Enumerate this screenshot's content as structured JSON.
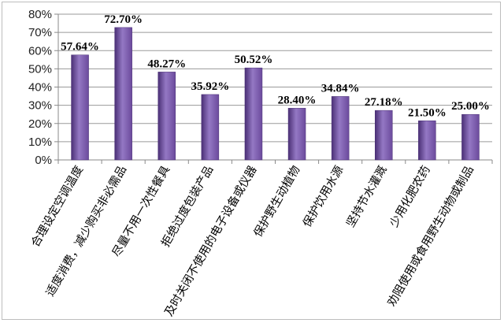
{
  "chart_data": {
    "type": "bar",
    "categories": [
      "合理设定空调温度",
      "适度消费，减少购买非必需品",
      "尽量不用一次性餐具",
      "拒绝过度包装产品",
      "及时关闭不使用的电子设备或仪器",
      "保护野生动植物",
      "保护饮用水源",
      "坚持节水灌溉",
      "少用化肥农药",
      "劝阻使用或食用野生动物或制品"
    ],
    "values": [
      57.64,
      72.7,
      48.27,
      35.92,
      50.52,
      28.4,
      34.84,
      27.18,
      21.5,
      25.0
    ],
    "data_labels": [
      "57.64%",
      "72.70%",
      "48.27%",
      "35.92%",
      "50.52%",
      "28.40%",
      "34.84%",
      "27.18%",
      "21.50%",
      "25.00%"
    ],
    "y_ticks": [
      0,
      10,
      20,
      30,
      40,
      50,
      60,
      70,
      80
    ],
    "y_tick_labels": [
      "0%",
      "10%",
      "20%",
      "30%",
      "40%",
      "50%",
      "60%",
      "70%",
      "80%"
    ],
    "ylim": [
      0,
      80
    ],
    "grid": true,
    "legend": "none",
    "bar_color": "#6b4a9c",
    "bar_color_light": "#9478c4",
    "bar_color_dark": "#4a2f75"
  }
}
